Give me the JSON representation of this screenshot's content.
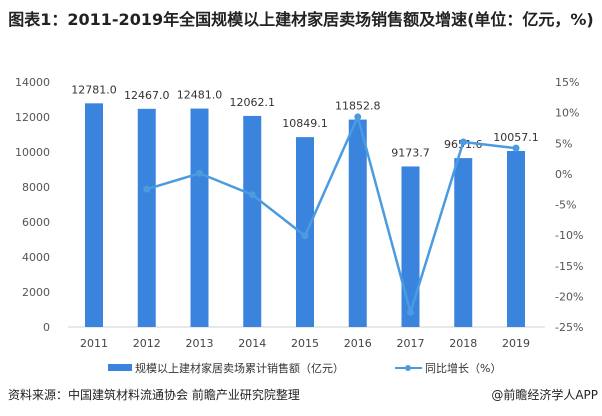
{
  "title": "图表1：2011-2019年全国规模以上建材家居卖场销售额及增速(单位：亿元，%)",
  "source": "资料来源：中国建筑材料流通协会 前瞻产业研究院整理",
  "brand": "@前瞻经济学人APP",
  "chart_data": {
    "type": "bar+line",
    "categories": [
      "2011",
      "2012",
      "2013",
      "2014",
      "2015",
      "2016",
      "2017",
      "2018",
      "2019"
    ],
    "series": [
      {
        "name": "规模以上建材家居卖场累计销售额（亿元）",
        "type": "bar",
        "axis": "left",
        "color": "#3a84de",
        "values": [
          12781.0,
          12467.0,
          12481.0,
          12062.1,
          10849.1,
          11852.8,
          9173.7,
          9651.6,
          10057.1
        ],
        "labels": [
          "12781.0",
          "12467.0",
          "12481.0",
          "12062.1",
          "10849.1",
          "11852.8",
          "9173.7",
          "9651.6",
          "10057.1"
        ]
      },
      {
        "name": "同比增长（%）",
        "type": "line",
        "axis": "right",
        "color": "#4a9be0",
        "values": [
          null,
          -2.5,
          0.1,
          -3.4,
          -10.1,
          9.3,
          -22.6,
          5.2,
          4.2
        ]
      }
    ],
    "left_axis": {
      "min": 0,
      "max": 14000,
      "ticks": [
        "0",
        "2000",
        "4000",
        "6000",
        "8000",
        "10000",
        "12000",
        "14000"
      ]
    },
    "right_axis": {
      "min": -25,
      "max": 15,
      "ticks": [
        "-25%",
        "-20%",
        "-15%",
        "-10%",
        "-5%",
        "0%",
        "5%",
        "10%",
        "15%"
      ]
    },
    "grid": false,
    "legend": "bottom"
  }
}
